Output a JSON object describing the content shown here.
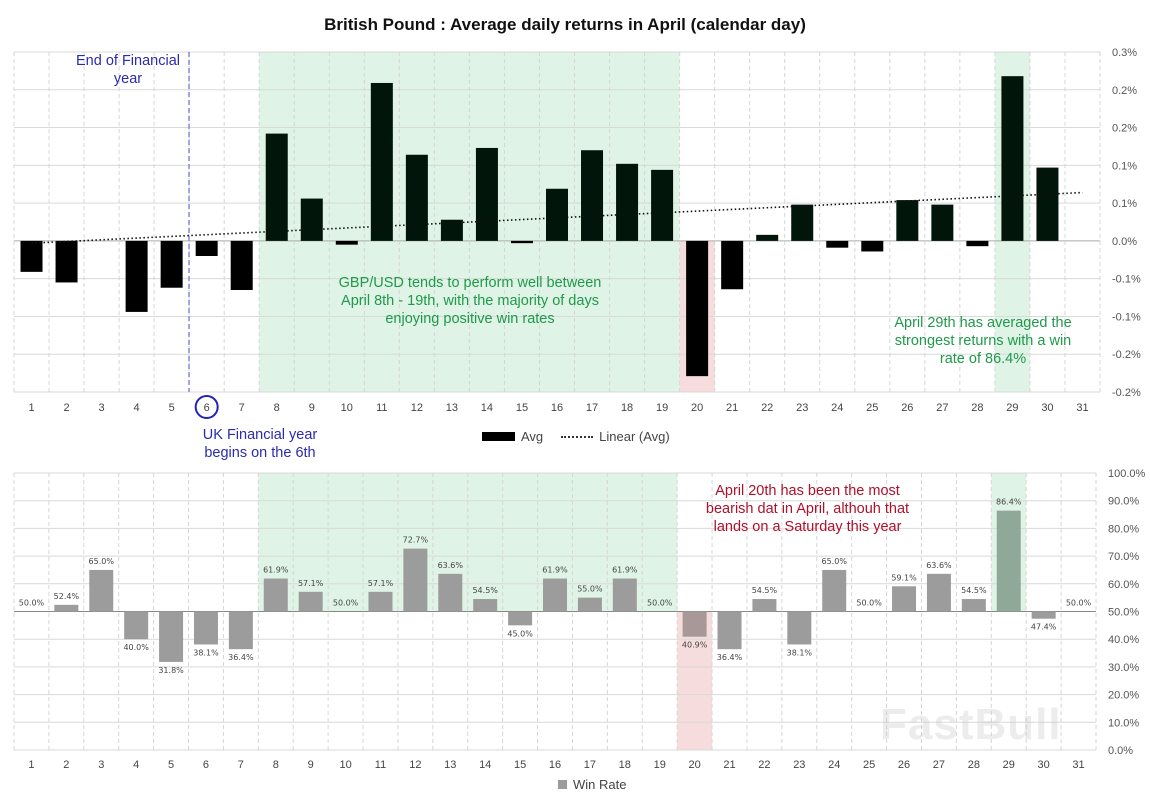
{
  "title": "British Pound : Average daily returns in April (calendar day)",
  "colors": {
    "bar": "#02150b",
    "bar_neg": "#000000",
    "green_shade": "#dff3e6",
    "pink_shade": "#f6dcdc",
    "winrate_bar": "#9c9c9c",
    "winrate_highlight": "#8fa898",
    "annotation_green": "#1f9a4a",
    "annotation_blue": "#2b2bb0",
    "annotation_red": "#b0102a"
  },
  "annotations": {
    "end_fy": "End of Financial year",
    "uk_fy": "UK Financial year begins on the 6th",
    "gbp_note": "GBP/USD tends to perform well between April 8th - 19th, with the majority of days enjoying positive win rates",
    "apr29_note": "April 29th has averaged the strongest returns with a win rate of 86.4%",
    "apr20_note": "April 20th has been the most bearish dat in April, althouh that lands on a Saturday this year"
  },
  "watermark": "FastBull",
  "chart_data": [
    {
      "type": "bar",
      "title": "British Pound : Average daily returns in April (calendar day)",
      "categories": [
        "1",
        "2",
        "3",
        "4",
        "5",
        "6",
        "7",
        "8",
        "9",
        "10",
        "11",
        "12",
        "13",
        "14",
        "15",
        "16",
        "17",
        "18",
        "19",
        "20",
        "21",
        "22",
        "23",
        "24",
        "25",
        "26",
        "27",
        "28",
        "29",
        "30",
        "31"
      ],
      "series": [
        {
          "name": "Avg",
          "values": [
            -0.041,
            -0.055,
            0,
            -0.094,
            -0.062,
            -0.02,
            -0.065,
            0.142,
            0.056,
            -0.005,
            0.209,
            0.114,
            0.028,
            0.123,
            -0.003,
            0.069,
            0.12,
            0.102,
            0.094,
            -0.179,
            -0.064,
            0.008,
            0.048,
            -0.009,
            -0.014,
            0.054,
            0.048,
            -0.007,
            0.218,
            0.097,
            0
          ]
        },
        {
          "name": "Linear (Avg)",
          "type": "trendline",
          "start": -0.003,
          "end": 0.064
        }
      ],
      "yticks": [
        "0.3%",
        "0.2%",
        "0.2%",
        "0.1%",
        "0.1%",
        "0.0%",
        "-0.1%",
        "-0.1%",
        "-0.2%",
        "-0.2%"
      ],
      "ylim": [
        -0.2,
        0.25
      ],
      "grid": true,
      "legend": "bottom",
      "highlight_days": {
        "green": [
          "8-19",
          "29"
        ],
        "red": [
          "20"
        ]
      },
      "circled_day": "6"
    },
    {
      "type": "bar",
      "categories": [
        "1",
        "2",
        "3",
        "4",
        "5",
        "6",
        "7",
        "8",
        "9",
        "10",
        "11",
        "12",
        "13",
        "14",
        "15",
        "16",
        "17",
        "18",
        "19",
        "20",
        "21",
        "22",
        "23",
        "24",
        "25",
        "26",
        "27",
        "28",
        "29",
        "30",
        "31"
      ],
      "series": [
        {
          "name": "Win Rate",
          "values": [
            50.0,
            52.4,
            65.0,
            40.0,
            31.8,
            38.1,
            36.4,
            61.9,
            57.1,
            50.0,
            57.1,
            72.7,
            63.6,
            54.5,
            45.0,
            61.9,
            55.0,
            61.9,
            50.0,
            40.9,
            36.4,
            54.5,
            38.1,
            65.0,
            50.0,
            59.1,
            63.6,
            54.5,
            86.4,
            47.4,
            50.0
          ]
        }
      ],
      "baseline": 50,
      "yticks": [
        "100.0%",
        "90.0%",
        "80.0%",
        "70.0%",
        "60.0%",
        "50.0%",
        "40.0%",
        "30.0%",
        "20.0%",
        "10.0%",
        "0.0%"
      ],
      "ylim": [
        0,
        100
      ],
      "grid": true,
      "legend": "bottom"
    }
  ]
}
